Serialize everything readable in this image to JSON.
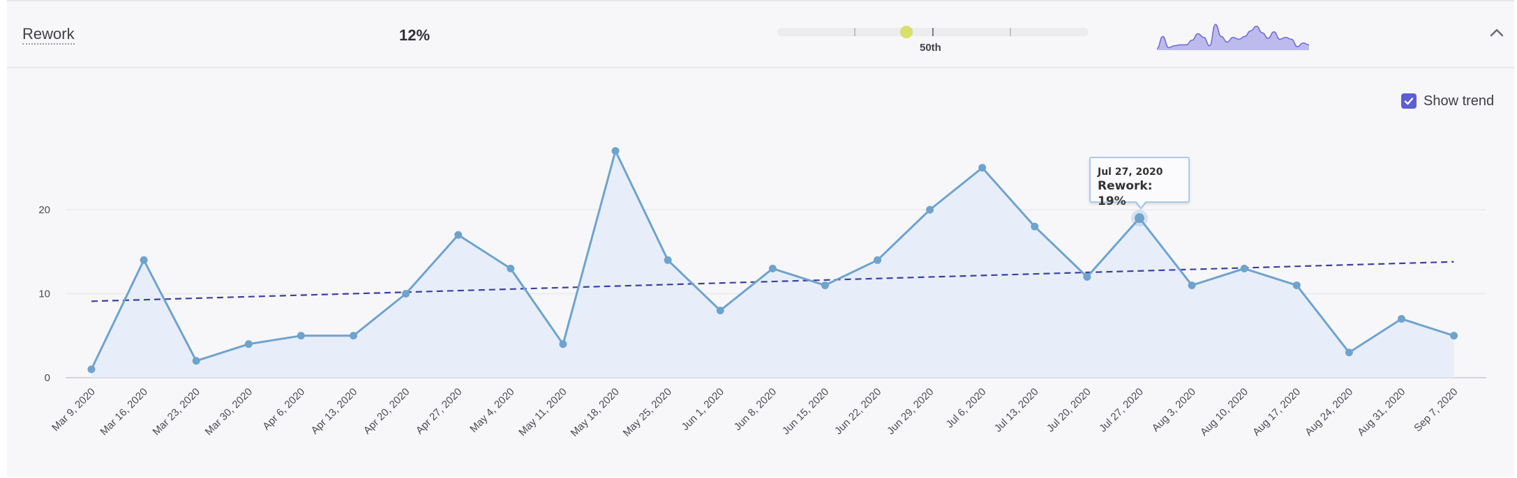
{
  "header": {
    "metric_name": "Rework",
    "metric_value": "12%",
    "percentile_label": "50th",
    "percentile_value": 50,
    "sparkline": [
      1,
      14,
      2,
      4,
      5,
      5,
      10,
      17,
      13,
      4,
      27,
      14,
      8,
      13,
      11,
      14,
      20,
      25,
      18,
      12,
      19,
      11,
      13,
      11,
      3,
      7,
      5
    ]
  },
  "trend_toggle": {
    "label": "Show trend",
    "checked": true
  },
  "tooltip": {
    "date": "Jul 27, 2020",
    "value_text": "Rework: 19%",
    "index": 20
  },
  "colors": {
    "line": "#6fa3cc",
    "fill": "#e4ecf8",
    "trend": "#3c3f9e",
    "accent": "#5b5fcf",
    "percentile_dot": "#d6e06a",
    "sparkline_fill": "#a9a6ea",
    "sparkline_line": "#6d68d6"
  },
  "chart_data": {
    "type": "line",
    "title": "Rework",
    "xlabel": "",
    "ylabel": "",
    "ylim": [
      0,
      30
    ],
    "yticks": [
      0,
      10,
      20
    ],
    "categories": [
      "Mar 9, 2020",
      "Mar 16, 2020",
      "Mar 23, 2020",
      "Mar 30, 2020",
      "Apr 6, 2020",
      "Apr 13, 2020",
      "Apr 20, 2020",
      "Apr 27, 2020",
      "May 4, 2020",
      "May 11, 2020",
      "May 18, 2020",
      "May 25, 2020",
      "Jun 1, 2020",
      "Jun 8, 2020",
      "Jun 15, 2020",
      "Jun 22, 2020",
      "Jun 29, 2020",
      "Jul 6, 2020",
      "Jul 13, 2020",
      "Jul 20, 2020",
      "Jul 27, 2020",
      "Aug 3, 2020",
      "Aug 10, 2020",
      "Aug 17, 2020",
      "Aug 24, 2020",
      "Aug 31, 2020",
      "Sep 7, 2020"
    ],
    "series": [
      {
        "name": "Rework",
        "values": [
          1,
          14,
          2,
          4,
          5,
          5,
          10,
          17,
          13,
          4,
          27,
          14,
          8,
          13,
          11,
          14,
          20,
          25,
          18,
          12,
          19,
          11,
          13,
          11,
          3,
          7,
          5
        ]
      },
      {
        "name": "Trend",
        "style": "dashed",
        "start": 9.1,
        "end": 13.8
      }
    ],
    "grid": true
  }
}
